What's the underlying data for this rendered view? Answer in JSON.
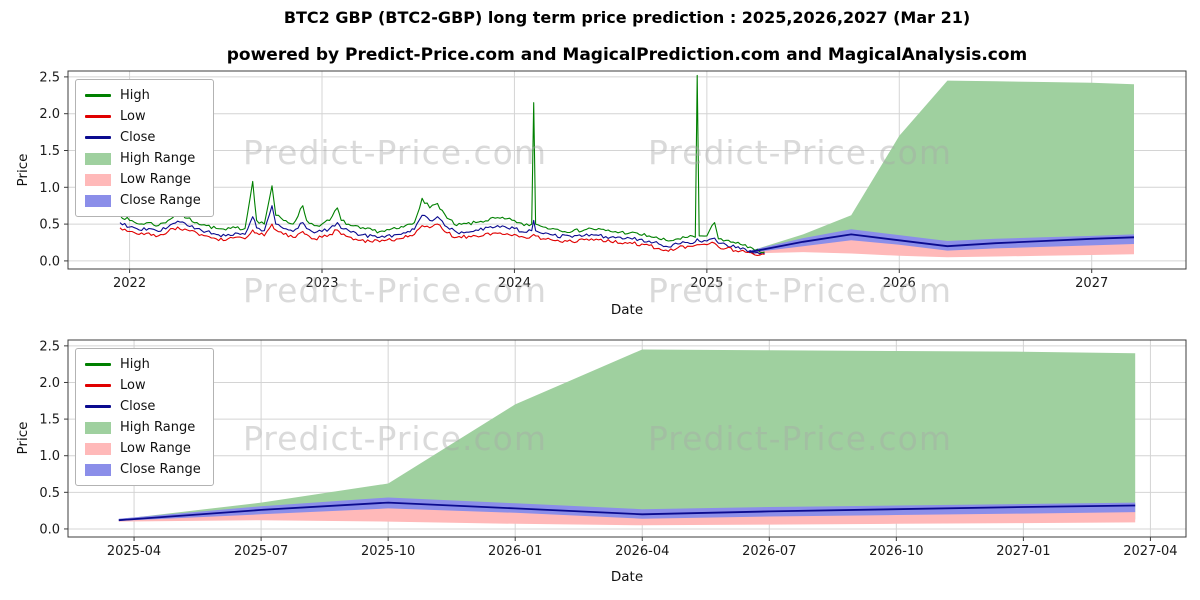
{
  "page": {
    "title": "BTC2 GBP (BTC2-GBP) long term price prediction : 2025,2026,2027 (Mar 21)",
    "subtitle": "powered by Predict-Price.com and MagicalPrediction.com and MagicalAnalysis.com",
    "watermark": "Predict-Price.com"
  },
  "colors": {
    "high": "#008000",
    "low": "#e00000",
    "close": "#0b0b8f",
    "high_range": "#9fd09f",
    "low_range": "#ffb9b9",
    "close_range": "#8b8ee9",
    "grid": "#d4d4d4",
    "axis": "#3c3c3c",
    "tick_text": "#1a1a1a"
  },
  "legend": [
    {
      "label": "High",
      "swatch": "line",
      "color_key": "high"
    },
    {
      "label": "Low",
      "swatch": "line",
      "color_key": "low"
    },
    {
      "label": "Close",
      "swatch": "line",
      "color_key": "close"
    },
    {
      "label": "High Range",
      "swatch": "patch",
      "color_key": "high_range"
    },
    {
      "label": "Low Range",
      "swatch": "patch",
      "color_key": "low_range"
    },
    {
      "label": "Close Range",
      "swatch": "patch",
      "color_key": "close_range"
    }
  ],
  "chart_data": [
    {
      "type": "line",
      "title": "",
      "xlabel": "Date",
      "ylabel": "Price",
      "grid": true,
      "legend_position": "upper left",
      "xlim": [
        2021.68,
        2027.49
      ],
      "ylim": [
        -0.11,
        2.58
      ],
      "yticks": [
        0.0,
        0.5,
        1.0,
        1.5,
        2.0,
        2.5
      ],
      "xticks": {
        "values": [
          2022,
          2023,
          2024,
          2025,
          2026,
          2027
        ],
        "labels": [
          "2022",
          "2023",
          "2024",
          "2025",
          "2026",
          "2027"
        ]
      },
      "history": {
        "noise": 0.025,
        "seed": 7,
        "step": 0.012,
        "x": [
          2021.95,
          2022.0,
          2022.05,
          2022.1,
          2022.15,
          2022.2,
          2022.25,
          2022.3,
          2022.35,
          2022.4,
          2022.45,
          2022.5,
          2022.55,
          2022.6,
          2022.64,
          2022.66,
          2022.7,
          2022.74,
          2022.76,
          2022.8,
          2022.85,
          2022.9,
          2022.92,
          2022.96,
          2023.0,
          2023.04,
          2023.08,
          2023.1,
          2023.15,
          2023.2,
          2023.3,
          2023.4,
          2023.48,
          2023.52,
          2023.56,
          2023.6,
          2023.65,
          2023.7,
          2023.8,
          2023.9,
          2024.0,
          2024.05,
          2024.09,
          2024.1,
          2024.11,
          2024.15,
          2024.2,
          2024.3,
          2024.4,
          2024.5,
          2024.6,
          2024.7,
          2024.75,
          2024.8,
          2024.85,
          2024.9,
          2024.94,
          2024.95,
          2024.96,
          2025.0,
          2025.04,
          2025.06,
          2025.1,
          2025.15,
          2025.2,
          2025.25,
          2025.3
        ],
        "high": [
          0.62,
          0.55,
          0.5,
          0.52,
          0.48,
          0.55,
          0.65,
          0.58,
          0.52,
          0.48,
          0.44,
          0.42,
          0.45,
          0.44,
          1.08,
          0.55,
          0.5,
          1.02,
          0.62,
          0.55,
          0.5,
          0.75,
          0.55,
          0.48,
          0.5,
          0.55,
          0.72,
          0.55,
          0.48,
          0.44,
          0.4,
          0.44,
          0.52,
          0.85,
          0.72,
          0.78,
          0.58,
          0.48,
          0.52,
          0.58,
          0.55,
          0.48,
          0.5,
          2.15,
          0.5,
          0.46,
          0.44,
          0.4,
          0.44,
          0.4,
          0.38,
          0.34,
          0.3,
          0.27,
          0.3,
          0.32,
          0.32,
          2.52,
          0.34,
          0.34,
          0.52,
          0.3,
          0.28,
          0.24,
          0.22,
          0.14,
          0.12
        ],
        "low": [
          0.45,
          0.4,
          0.36,
          0.38,
          0.34,
          0.4,
          0.46,
          0.42,
          0.38,
          0.34,
          0.3,
          0.28,
          0.32,
          0.3,
          0.42,
          0.38,
          0.34,
          0.5,
          0.42,
          0.36,
          0.32,
          0.4,
          0.36,
          0.3,
          0.32,
          0.36,
          0.42,
          0.36,
          0.32,
          0.28,
          0.26,
          0.3,
          0.36,
          0.48,
          0.45,
          0.5,
          0.38,
          0.32,
          0.34,
          0.38,
          0.36,
          0.32,
          0.34,
          0.36,
          0.34,
          0.3,
          0.28,
          0.26,
          0.3,
          0.26,
          0.25,
          0.21,
          0.17,
          0.13,
          0.18,
          0.2,
          0.21,
          0.22,
          0.22,
          0.22,
          0.24,
          0.19,
          0.17,
          0.14,
          0.12,
          0.08,
          0.09
        ],
        "close": [
          0.52,
          0.46,
          0.42,
          0.44,
          0.4,
          0.46,
          0.54,
          0.48,
          0.44,
          0.4,
          0.36,
          0.34,
          0.38,
          0.36,
          0.6,
          0.45,
          0.41,
          0.75,
          0.5,
          0.44,
          0.4,
          0.52,
          0.44,
          0.38,
          0.4,
          0.44,
          0.52,
          0.44,
          0.39,
          0.35,
          0.32,
          0.36,
          0.43,
          0.62,
          0.55,
          0.6,
          0.46,
          0.39,
          0.42,
          0.46,
          0.44,
          0.39,
          0.41,
          0.55,
          0.41,
          0.37,
          0.35,
          0.32,
          0.36,
          0.32,
          0.31,
          0.27,
          0.23,
          0.19,
          0.23,
          0.25,
          0.26,
          0.3,
          0.27,
          0.27,
          0.31,
          0.24,
          0.22,
          0.18,
          0.16,
          0.11,
          0.1
        ]
      },
      "forecast": {
        "x": [
          2025.22,
          2025.5,
          2025.75,
          2026.0,
          2026.25,
          2026.5,
          2026.75,
          2027.0,
          2027.22
        ],
        "high_range_top": [
          0.13,
          0.36,
          0.62,
          1.7,
          2.45,
          2.44,
          2.43,
          2.42,
          2.4
        ],
        "high_range_bottom": [
          0.11,
          0.15,
          0.14,
          0.12,
          0.1,
          0.1,
          0.11,
          0.12,
          0.13
        ],
        "low_range_top": [
          0.13,
          0.24,
          0.3,
          0.24,
          0.18,
          0.2,
          0.22,
          0.23,
          0.24
        ],
        "low_range_bottom": [
          0.1,
          0.12,
          0.1,
          0.07,
          0.05,
          0.06,
          0.07,
          0.08,
          0.09
        ],
        "close_range_top": [
          0.14,
          0.31,
          0.43,
          0.35,
          0.27,
          0.3,
          0.32,
          0.34,
          0.36
        ],
        "close_range_bottom": [
          0.11,
          0.2,
          0.28,
          0.22,
          0.14,
          0.17,
          0.19,
          0.21,
          0.23
        ],
        "close": [
          0.12,
          0.26,
          0.36,
          0.28,
          0.2,
          0.24,
          0.27,
          0.3,
          0.32
        ]
      }
    },
    {
      "type": "line",
      "title": "",
      "xlabel": "Date",
      "ylabel": "Price",
      "grid": true,
      "legend_position": "upper left",
      "xlim": [
        2025.12,
        2027.32
      ],
      "ylim": [
        -0.11,
        2.58
      ],
      "yticks": [
        0.0,
        0.5,
        1.0,
        1.5,
        2.0,
        2.5
      ],
      "xticks": {
        "values": [
          2025.25,
          2025.5,
          2025.75,
          2026.0,
          2026.25,
          2026.5,
          2026.75,
          2027.0,
          2027.25
        ],
        "labels": [
          "2025-04",
          "2025-07",
          "2025-10",
          "2026-01",
          "2026-04",
          "2026-07",
          "2026-10",
          "2027-01",
          "2027-04"
        ]
      },
      "forecast": {
        "x": [
          2025.22,
          2025.5,
          2025.75,
          2026.0,
          2026.25,
          2026.5,
          2026.75,
          2027.0,
          2027.22
        ],
        "high_range_top": [
          0.13,
          0.36,
          0.62,
          1.7,
          2.45,
          2.44,
          2.43,
          2.42,
          2.4
        ],
        "high_range_bottom": [
          0.11,
          0.15,
          0.14,
          0.12,
          0.1,
          0.1,
          0.11,
          0.12,
          0.13
        ],
        "low_range_top": [
          0.13,
          0.24,
          0.3,
          0.24,
          0.18,
          0.2,
          0.22,
          0.23,
          0.24
        ],
        "low_range_bottom": [
          0.1,
          0.12,
          0.1,
          0.07,
          0.05,
          0.06,
          0.07,
          0.08,
          0.09
        ],
        "close_range_top": [
          0.14,
          0.31,
          0.43,
          0.35,
          0.27,
          0.3,
          0.32,
          0.34,
          0.36
        ],
        "close_range_bottom": [
          0.11,
          0.2,
          0.28,
          0.22,
          0.14,
          0.17,
          0.19,
          0.21,
          0.23
        ],
        "close": [
          0.12,
          0.26,
          0.36,
          0.28,
          0.2,
          0.24,
          0.27,
          0.3,
          0.32
        ]
      }
    }
  ]
}
